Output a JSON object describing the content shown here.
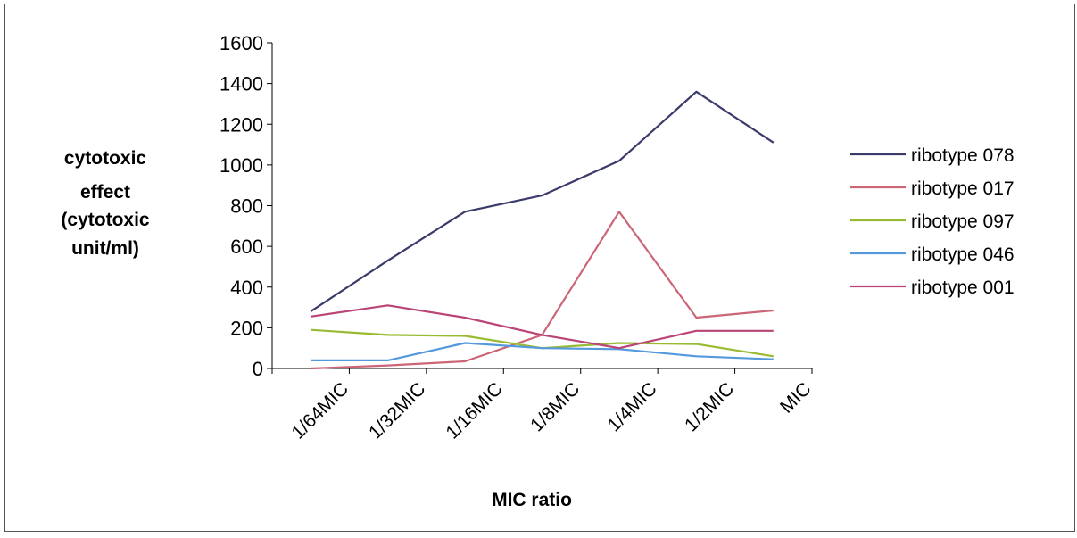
{
  "chart_data": {
    "type": "line",
    "title": "",
    "ylabel_lines": [
      "cytotoxic",
      "effect",
      "(cytotoxic",
      "unit/ml)"
    ],
    "xlabel": "MIC ratio",
    "categories": [
      "1/64MIC",
      "1/32MIC",
      "1/16MIC",
      "1/8MIC",
      "1/4MIC",
      "1/2MIC",
      "MIC"
    ],
    "ylim": [
      0,
      1600
    ],
    "yticks": [
      0,
      200,
      400,
      600,
      800,
      1000,
      1200,
      1400,
      1600
    ],
    "grid": false,
    "legend_position": "right",
    "series": [
      {
        "name": "ribotype 078",
        "color": "#3b3b6b",
        "values": [
          280,
          530,
          770,
          850,
          1020,
          1360,
          1110
        ]
      },
      {
        "name": "ribotype 017",
        "color": "#cc6677",
        "values": [
          0,
          15,
          35,
          165,
          770,
          250,
          285
        ]
      },
      {
        "name": "ribotype 097",
        "color": "#99bb33",
        "values": [
          190,
          165,
          160,
          100,
          125,
          120,
          60
        ]
      },
      {
        "name": "ribotype 046",
        "color": "#5599dd",
        "values": [
          40,
          40,
          125,
          100,
          95,
          60,
          45
        ]
      },
      {
        "name": "ribotype 001",
        "color": "#bb4477",
        "values": [
          255,
          310,
          250,
          165,
          100,
          185,
          185
        ]
      }
    ]
  }
}
